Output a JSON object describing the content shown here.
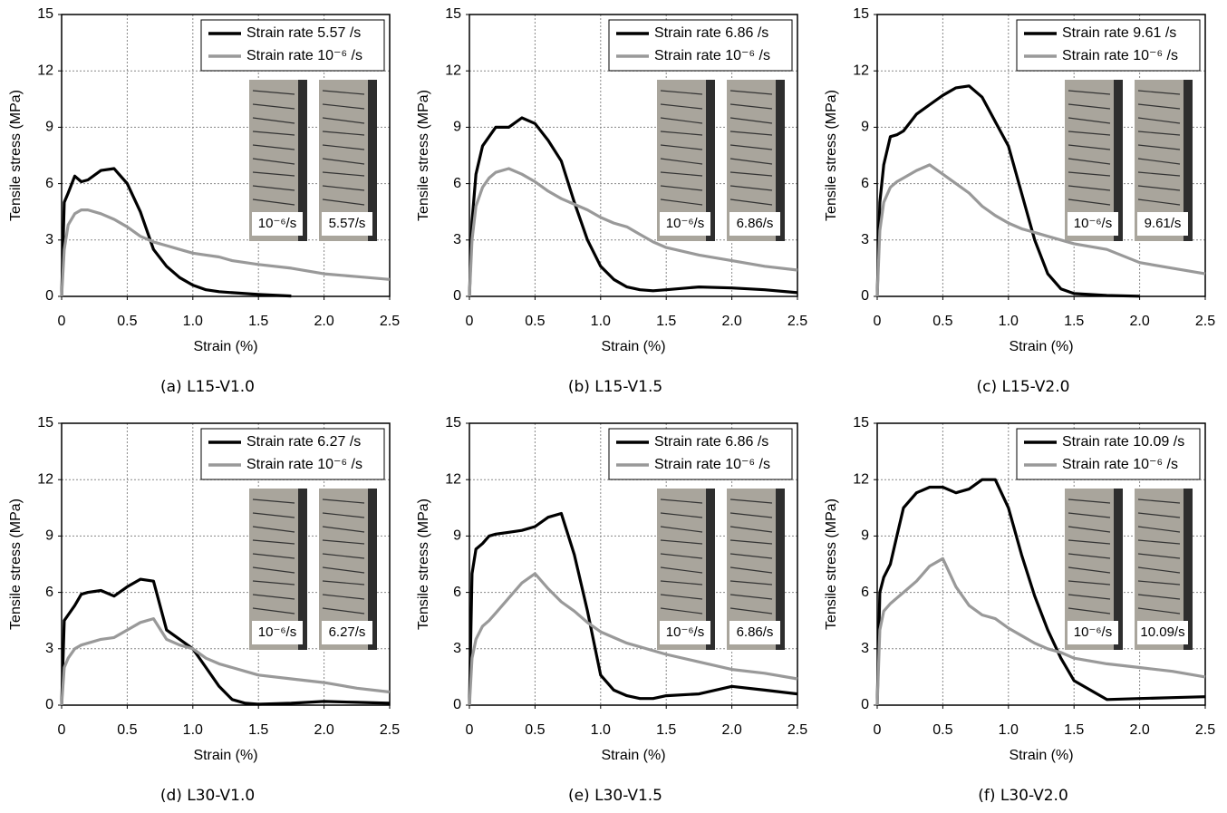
{
  "chart_data": [
    {
      "type": "line",
      "caption": "(a) L15-V1.0",
      "xlabel": "Strain (%)",
      "ylabel": "Tensile stress (MPa)",
      "xlim": [
        0,
        2.5
      ],
      "ylim": [
        0,
        15
      ],
      "xticks": [
        0,
        0.5,
        {
          "value": 1,
          "label": "1.0"
        },
        1.5,
        {
          "value": 2,
          "label": "2.0"
        },
        2.5
      ],
      "yticks": [
        0,
        3,
        6,
        9,
        12,
        15
      ],
      "grid": true,
      "insets": [
        "10⁻⁶/s",
        "5.57/s"
      ],
      "x": [
        0,
        0.02,
        0.05,
        0.1,
        0.15,
        0.2,
        0.3,
        0.4,
        0.5,
        0.6,
        0.7,
        0.8,
        0.9,
        1,
        1.1,
        1.2,
        1.3,
        1.4,
        1.5,
        1.75,
        2,
        2.25,
        2.5
      ],
      "series": [
        {
          "name": "Strain rate  5.57 /s",
          "color": "#000000",
          "values": [
            0,
            5,
            5.5,
            6.4,
            6.1,
            6.2,
            6.7,
            6.8,
            6,
            4.5,
            2.5,
            1.6,
            1,
            0.6,
            0.35,
            0.25,
            0.2,
            0.15,
            0.1,
            0.02,
            null,
            null,
            null
          ]
        },
        {
          "name": "Strain rate  10⁻⁶ /s",
          "color": "#999999",
          "values": [
            0,
            2.5,
            3.8,
            4.4,
            4.6,
            4.6,
            4.4,
            4.1,
            3.7,
            3.2,
            2.9,
            2.7,
            2.5,
            2.3,
            2.2,
            2.1,
            1.9,
            1.8,
            1.7,
            1.5,
            1.2,
            1.05,
            0.9
          ]
        }
      ]
    },
    {
      "type": "line",
      "caption": "(b) L15-V1.5",
      "xlabel": "Strain (%)",
      "ylabel": "Tensile stress (MPa)",
      "xlim": [
        0,
        2.5
      ],
      "ylim": [
        0,
        15
      ],
      "xticks": [
        0,
        0.5,
        {
          "value": 1,
          "label": "1.0"
        },
        1.5,
        {
          "value": 2,
          "label": "2.0"
        },
        2.5
      ],
      "yticks": [
        0,
        3,
        6,
        9,
        12,
        15
      ],
      "grid": true,
      "insets": [
        "10⁻⁶/s",
        "6.86/s"
      ],
      "x": [
        0,
        0.02,
        0.05,
        0.1,
        0.15,
        0.2,
        0.3,
        0.4,
        0.5,
        0.6,
        0.7,
        0.8,
        0.9,
        1,
        1.1,
        1.2,
        1.3,
        1.4,
        1.5,
        1.75,
        2,
        2.25,
        2.5
      ],
      "series": [
        {
          "name": "Strain rate  6.86 /s",
          "color": "#000000",
          "values": [
            0,
            4,
            6.5,
            8,
            8.5,
            9,
            9,
            9.5,
            9.2,
            8.3,
            7.2,
            5,
            3,
            1.6,
            0.9,
            0.5,
            0.35,
            0.3,
            0.35,
            0.5,
            0.45,
            0.35,
            0.2
          ]
        },
        {
          "name": "Strain rate  10⁻⁶ /s",
          "color": "#999999",
          "values": [
            0,
            3,
            4.8,
            5.8,
            6.3,
            6.6,
            6.8,
            6.5,
            6.1,
            5.6,
            5.2,
            4.9,
            4.6,
            4.2,
            3.9,
            3.7,
            3.3,
            2.9,
            2.6,
            2.2,
            1.9,
            1.6,
            1.4
          ]
        }
      ]
    },
    {
      "type": "line",
      "caption": "(c) L15-V2.0",
      "xlabel": "Strain (%)",
      "ylabel": "Tensile stress (MPa)",
      "xlim": [
        0,
        2.5
      ],
      "ylim": [
        0,
        15
      ],
      "xticks": [
        0,
        0.5,
        {
          "value": 1,
          "label": "1.0"
        },
        1.5,
        {
          "value": 2,
          "label": "2.0"
        },
        2.5
      ],
      "yticks": [
        0,
        3,
        6,
        9,
        12,
        15
      ],
      "grid": true,
      "insets": [
        "10⁻⁶/s",
        "9.61/s"
      ],
      "x": [
        0,
        0.02,
        0.05,
        0.1,
        0.15,
        0.2,
        0.3,
        0.4,
        0.5,
        0.6,
        0.7,
        0.8,
        0.9,
        1,
        1.1,
        1.2,
        1.3,
        1.4,
        1.5,
        1.75,
        2,
        2.25,
        2.5
      ],
      "series": [
        {
          "name": "Strain rate  9.61 /s",
          "color": "#000000",
          "values": [
            0,
            5,
            7,
            8.5,
            8.6,
            8.8,
            9.7,
            10.2,
            10.7,
            11.1,
            11.2,
            10.6,
            9.3,
            8,
            5.5,
            3,
            1.2,
            0.4,
            0.15,
            0.05,
            0.01,
            null,
            null
          ]
        },
        {
          "name": "Strain rate  10⁻⁶ /s",
          "color": "#999999",
          "values": [
            0,
            3.5,
            5,
            5.8,
            6.1,
            6.3,
            6.7,
            7,
            6.5,
            6,
            5.5,
            4.8,
            4.3,
            3.9,
            3.6,
            3.4,
            3.2,
            3,
            2.8,
            2.5,
            1.8,
            1.5,
            1.2
          ]
        }
      ]
    },
    {
      "type": "line",
      "caption": "(d) L30-V1.0",
      "xlabel": "Strain (%)",
      "ylabel": "Tensile stress (MPa)",
      "xlim": [
        0,
        2.5
      ],
      "ylim": [
        0,
        15
      ],
      "xticks": [
        0,
        0.5,
        {
          "value": 1,
          "label": "1.0"
        },
        1.5,
        {
          "value": 2,
          "label": "2.0"
        },
        2.5
      ],
      "yticks": [
        0,
        3,
        6,
        9,
        12,
        15
      ],
      "grid": true,
      "insets": [
        "10⁻⁶/s",
        "6.27/s"
      ],
      "x": [
        0,
        0.02,
        0.05,
        0.1,
        0.15,
        0.2,
        0.3,
        0.4,
        0.5,
        0.6,
        0.7,
        0.8,
        0.9,
        1,
        1.1,
        1.2,
        1.3,
        1.4,
        1.5,
        1.75,
        2,
        2.25,
        2.5
      ],
      "series": [
        {
          "name": "Strain rate  6.27 /s",
          "color": "#000000",
          "values": [
            0,
            4.5,
            4.8,
            5.3,
            5.9,
            6,
            6.1,
            5.8,
            6.3,
            6.7,
            6.6,
            4,
            3.5,
            3,
            2,
            1,
            0.3,
            0.1,
            0.05,
            0.1,
            0.2,
            0.15,
            0.1
          ]
        },
        {
          "name": "Strain rate  10⁻⁶ /s",
          "color": "#999999",
          "values": [
            0,
            2,
            2.5,
            3,
            3.2,
            3.3,
            3.5,
            3.6,
            4,
            4.4,
            4.6,
            3.5,
            3.2,
            3,
            2.5,
            2.2,
            2,
            1.8,
            1.6,
            1.4,
            1.2,
            0.9,
            0.7
          ]
        }
      ]
    },
    {
      "type": "line",
      "caption": "(e) L30-V1.5",
      "xlabel": "Strain (%)",
      "ylabel": "Tensile stress (MPa)",
      "xlim": [
        0,
        2.5
      ],
      "ylim": [
        0,
        15
      ],
      "xticks": [
        0,
        0.5,
        {
          "value": 1,
          "label": "1.0"
        },
        1.5,
        {
          "value": 2,
          "label": "2.0"
        },
        2.5
      ],
      "yticks": [
        0,
        3,
        6,
        9,
        12,
        15
      ],
      "grid": true,
      "insets": [
        "10⁻⁶/s",
        "6.86/s"
      ],
      "x": [
        0,
        0.02,
        0.05,
        0.1,
        0.15,
        0.2,
        0.3,
        0.4,
        0.5,
        0.6,
        0.7,
        0.8,
        0.9,
        1,
        1.1,
        1.2,
        1.3,
        1.4,
        1.5,
        1.75,
        2,
        2.25,
        2.5
      ],
      "series": [
        {
          "name": "Strain rate  6.86 /s",
          "color": "#000000",
          "values": [
            0,
            7,
            8.3,
            8.6,
            9,
            9.1,
            9.2,
            9.3,
            9.5,
            10,
            10.2,
            8,
            5,
            1.6,
            0.8,
            0.5,
            0.35,
            0.35,
            0.5,
            0.6,
            1,
            0.8,
            0.6
          ]
        },
        {
          "name": "Strain rate  10⁻⁶ /s",
          "color": "#999999",
          "values": [
            0,
            2.5,
            3.5,
            4.2,
            4.5,
            4.9,
            5.7,
            6.5,
            7,
            6.2,
            5.5,
            5,
            4.4,
            3.9,
            3.6,
            3.3,
            3.1,
            2.9,
            2.7,
            2.3,
            1.9,
            1.7,
            1.4
          ]
        }
      ]
    },
    {
      "type": "line",
      "caption": "(f) L30-V2.0",
      "xlabel": "Strain (%)",
      "ylabel": "Tensile stress (MPa)",
      "xlim": [
        0,
        2.5
      ],
      "ylim": [
        0,
        15
      ],
      "xticks": [
        0,
        0.5,
        {
          "value": 1,
          "label": "1.0"
        },
        1.5,
        {
          "value": 2,
          "label": "2.0"
        },
        2.5
      ],
      "yticks": [
        0,
        3,
        6,
        9,
        12,
        15
      ],
      "grid": true,
      "insets": [
        "10⁻⁶/s",
        "10.09/s"
      ],
      "x": [
        0,
        0.02,
        0.05,
        0.1,
        0.15,
        0.2,
        0.3,
        0.4,
        0.5,
        0.6,
        0.7,
        0.8,
        0.9,
        1,
        1.1,
        1.2,
        1.3,
        1.4,
        1.5,
        1.75,
        2,
        2.25,
        2.5
      ],
      "series": [
        {
          "name": "Strain rate  10.09 /s",
          "color": "#000000",
          "values": [
            0,
            6,
            6.8,
            7.5,
            9,
            10.5,
            11.3,
            11.6,
            11.6,
            11.3,
            11.5,
            12,
            12,
            10.5,
            8,
            5.8,
            4,
            2.5,
            1.3,
            0.3,
            0.35,
            0.4,
            0.45
          ]
        },
        {
          "name": "Strain rate  10⁻⁶ /s",
          "color": "#999999",
          "values": [
            0,
            4,
            5,
            5.4,
            5.7,
            6,
            6.6,
            7.4,
            7.8,
            6.3,
            5.3,
            4.8,
            4.6,
            4.1,
            3.7,
            3.3,
            3,
            2.8,
            2.5,
            2.2,
            2,
            1.8,
            1.5
          ]
        }
      ]
    }
  ]
}
